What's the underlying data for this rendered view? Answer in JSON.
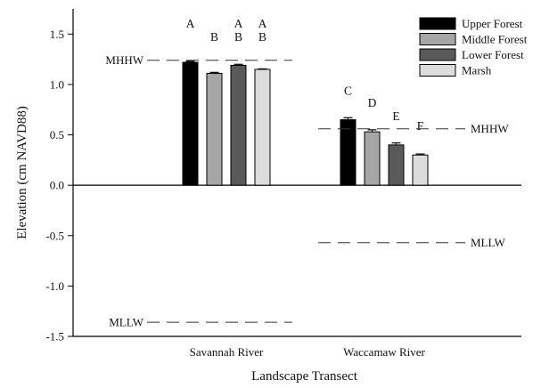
{
  "chart_data": {
    "type": "bar",
    "title": "",
    "xlabel": "Landscape Transect",
    "ylabel": "Elevation (cm NAVD88)",
    "ylim": [
      -1.5,
      1.75
    ],
    "yticks": [
      1.5,
      1.0,
      0.5,
      0.0,
      -0.5,
      -1.0,
      -1.5
    ],
    "ytick_labels": [
      "1.5",
      "1.0",
      "0.5",
      "0.0",
      "-0.5",
      "-1.0",
      "-1.5"
    ],
    "categories": [
      "Savannah River",
      "Waccamaw River"
    ],
    "series": [
      {
        "name": "Upper Forest",
        "color": "#000000",
        "values": [
          1.22,
          0.65
        ],
        "errors": [
          0.01,
          0.02
        ]
      },
      {
        "name": "Middle Forest",
        "color": "#a6a6a6",
        "values": [
          1.11,
          0.53
        ],
        "errors": [
          0.01,
          0.02
        ]
      },
      {
        "name": "Lower Forest",
        "color": "#5a5a5a",
        "values": [
          1.19,
          0.4
        ],
        "errors": [
          0.01,
          0.02
        ]
      },
      {
        "name": "Marsh",
        "color": "#dcdcdc",
        "values": [
          1.15,
          0.3
        ],
        "errors": [
          0.005,
          0.01
        ]
      }
    ],
    "significance_letters": [
      [
        "A",
        "C"
      ],
      [
        "B",
        "D"
      ],
      [
        "A B",
        "E"
      ],
      [
        "A B",
        "F"
      ]
    ],
    "reference_lines": [
      {
        "label": "MHHW",
        "value": 1.24,
        "group": 0,
        "label_side": "left"
      },
      {
        "label": "MLLW",
        "value": -1.36,
        "group": 0,
        "label_side": "left"
      },
      {
        "label": "MHHW",
        "value": 0.56,
        "group": 1,
        "label_side": "right"
      },
      {
        "label": "MLLW",
        "value": -0.57,
        "group": 1,
        "label_side": "right"
      }
    ],
    "legend_position": "top-right",
    "grid": false
  }
}
